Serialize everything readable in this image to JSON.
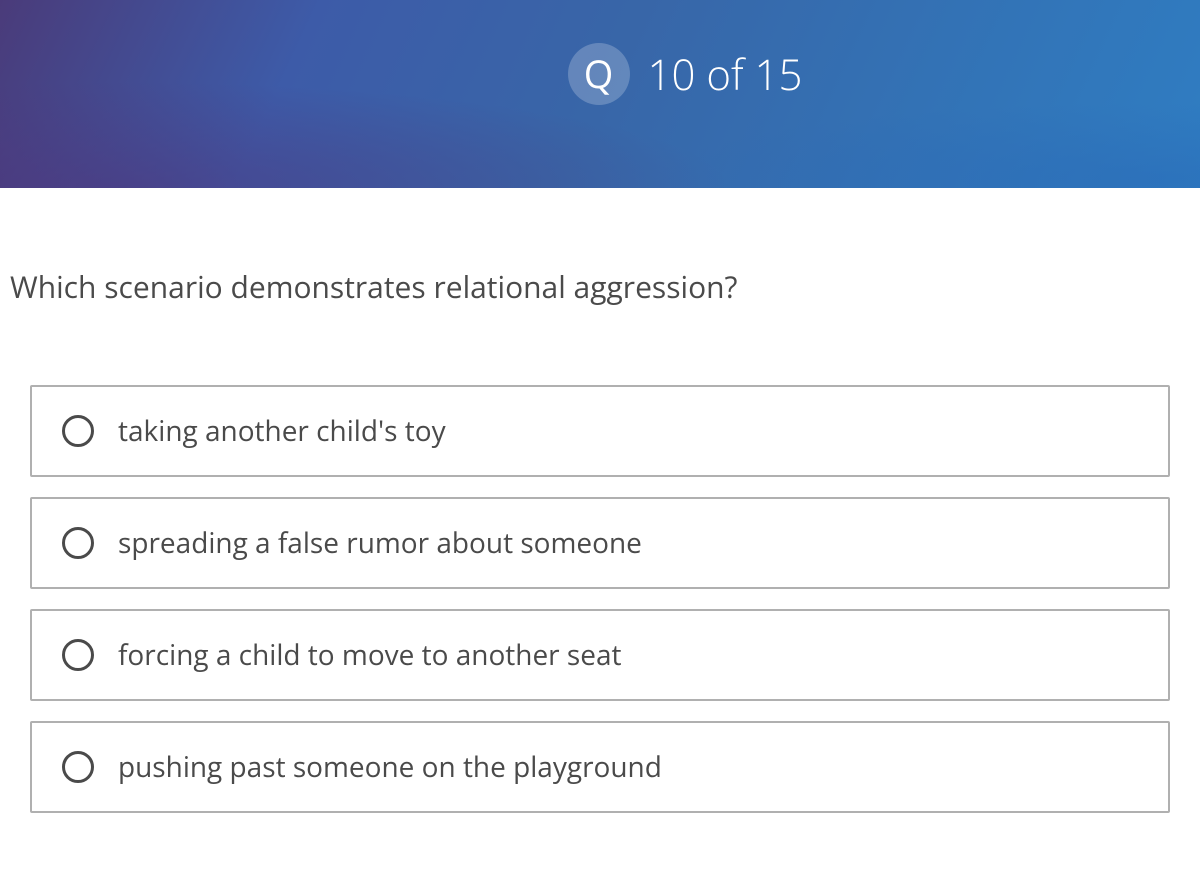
{
  "header": {
    "badge_letter": "Q",
    "counter_text": "10 of 15",
    "current": 10,
    "total": 15,
    "badge_bg": "rgba(255,255,255,0.22)",
    "text_color": "#ffffff"
  },
  "question": {
    "text": "Which scenario demonstrates relational aggression?",
    "text_color": "#4a4a4a",
    "font_size": 30
  },
  "options": [
    {
      "label": "taking another child's toy",
      "selected": false
    },
    {
      "label": "spreading a false rumor about someone",
      "selected": false
    },
    {
      "label": "forcing a child to move to another seat",
      "selected": false
    },
    {
      "label": "pushing past someone on the playground",
      "selected": false
    }
  ],
  "styling": {
    "option_border_color": "#b0b0b0",
    "option_height": 92,
    "radio_border_color": "#4a4a4a",
    "radio_size": 32,
    "option_font_size": 28,
    "option_text_color": "#4a4a4a",
    "header_gradient": [
      "#4a3b7a",
      "#3d5ba8",
      "#3866a8",
      "#3372b5",
      "#2f7dc2"
    ],
    "background_color": "#ffffff"
  }
}
